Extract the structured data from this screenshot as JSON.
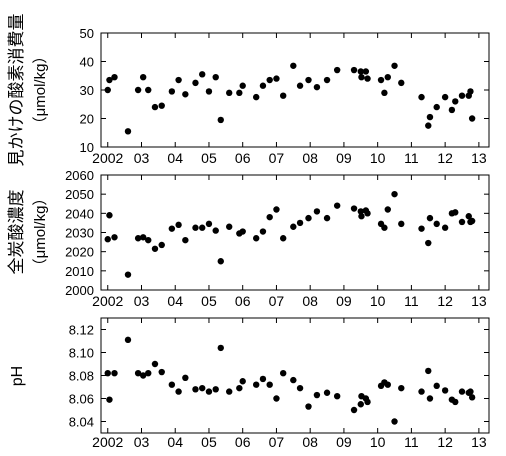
{
  "chart_data": [
    {
      "type": "scatter",
      "ylabel": "見かけの酸素消費量",
      "yunit": "（μmol/kg）",
      "ylim": [
        10,
        50
      ],
      "yticks": [
        "10",
        "20",
        "30",
        "40",
        "50"
      ],
      "xlim": [
        2001.8,
        2013.3
      ],
      "xticks": [
        "2002",
        "03",
        "04",
        "05",
        "06",
        "07",
        "08",
        "09",
        "10",
        "11",
        "12",
        "13"
      ],
      "grid": false,
      "x": [
        2002.0,
        2002.05,
        2002.2,
        2002.6,
        2002.9,
        2003.05,
        2003.2,
        2003.4,
        2003.6,
        2003.9,
        2004.1,
        2004.3,
        2004.6,
        2004.8,
        2005.0,
        2005.2,
        2005.35,
        2005.6,
        2005.9,
        2006.0,
        2006.4,
        2006.6,
        2006.8,
        2007.0,
        2007.2,
        2007.5,
        2007.7,
        2007.95,
        2008.2,
        2008.5,
        2008.8,
        2009.3,
        2009.5,
        2009.52,
        2009.65,
        2009.7,
        2010.1,
        2010.2,
        2010.3,
        2010.5,
        2010.7,
        2011.3,
        2011.5,
        2011.55,
        2011.75,
        2012.0,
        2012.2,
        2012.3,
        2012.5,
        2012.7,
        2012.75,
        2012.8
      ],
      "y": [
        30,
        33.5,
        34.5,
        15.5,
        30,
        34.5,
        30,
        24,
        24.5,
        29.5,
        33.5,
        28.5,
        32.5,
        35.5,
        29.5,
        34.5,
        19.5,
        29,
        29,
        31.5,
        27.5,
        31.5,
        33.5,
        34,
        28,
        38.5,
        31.5,
        33.5,
        31,
        33.5,
        37,
        37,
        36.5,
        34.5,
        36.5,
        34,
        33.5,
        29,
        34.5,
        38.5,
        32.5,
        27.5,
        17.5,
        20.5,
        24,
        27.5,
        23,
        26,
        28,
        28,
        29.5,
        20
      ]
    },
    {
      "type": "scatter",
      "ylabel": "全炭酸濃度",
      "yunit": "（μmol/kg）",
      "ylim": [
        2000,
        2060
      ],
      "yticks": [
        "2000",
        "2010",
        "2020",
        "2030",
        "2040",
        "2050",
        "2060"
      ],
      "xlim": [
        2001.8,
        2013.3
      ],
      "xticks": [
        "2002",
        "03",
        "04",
        "05",
        "06",
        "07",
        "08",
        "09",
        "10",
        "11",
        "12",
        "13"
      ],
      "grid": false,
      "x": [
        2002.0,
        2002.05,
        2002.2,
        2002.6,
        2002.9,
        2003.05,
        2003.2,
        2003.4,
        2003.6,
        2003.9,
        2004.1,
        2004.3,
        2004.6,
        2004.8,
        2005.0,
        2005.2,
        2005.35,
        2005.6,
        2005.9,
        2006.0,
        2006.4,
        2006.6,
        2006.8,
        2007.0,
        2007.2,
        2007.5,
        2007.7,
        2007.95,
        2008.2,
        2008.5,
        2008.8,
        2009.3,
        2009.5,
        2009.52,
        2009.65,
        2009.7,
        2010.1,
        2010.2,
        2010.3,
        2010.5,
        2010.7,
        2011.3,
        2011.5,
        2011.55,
        2011.75,
        2012.0,
        2012.2,
        2012.3,
        2012.5,
        2012.7,
        2012.75,
        2012.8
      ],
      "y": [
        2026.5,
        2039,
        2027.5,
        2008,
        2027,
        2027.5,
        2026,
        2021.5,
        2023.5,
        2032,
        2034,
        2026,
        2032.5,
        2032.5,
        2034.5,
        2031,
        2015,
        2033,
        2029.5,
        2030.5,
        2027,
        2030.5,
        2038,
        2042,
        2027,
        2033,
        2035,
        2037.5,
        2041,
        2037.5,
        2044,
        2042.5,
        2041,
        2038.5,
        2041.5,
        2040,
        2034.5,
        2032.5,
        2042,
        2050,
        2034.5,
        2032,
        2024.5,
        2037.5,
        2034.5,
        2032.5,
        2040,
        2040.5,
        2035.5,
        2038.5,
        2035.5,
        2036
      ]
    },
    {
      "type": "scatter",
      "ylabel": "pH",
      "ylim": [
        8.03,
        8.13
      ],
      "yticks": [
        "8.04",
        "8.06",
        "8.08",
        "8.10",
        "8.12"
      ],
      "xlim": [
        2001.8,
        2013.3
      ],
      "xticks": [
        "2002",
        "03",
        "04",
        "05",
        "06",
        "07",
        "08",
        "09",
        "10",
        "11",
        "12",
        "13"
      ],
      "grid": false,
      "x": [
        2002.0,
        2002.05,
        2002.2,
        2002.6,
        2002.9,
        2003.05,
        2003.2,
        2003.4,
        2003.6,
        2003.9,
        2004.1,
        2004.3,
        2004.6,
        2004.8,
        2005.0,
        2005.2,
        2005.35,
        2005.6,
        2005.9,
        2006.0,
        2006.4,
        2006.6,
        2006.8,
        2007.0,
        2007.2,
        2007.5,
        2007.7,
        2007.95,
        2008.2,
        2008.5,
        2008.8,
        2009.3,
        2009.5,
        2009.52,
        2009.65,
        2009.7,
        2010.1,
        2010.2,
        2010.3,
        2010.5,
        2010.7,
        2011.3,
        2011.5,
        2011.55,
        2011.75,
        2012.0,
        2012.2,
        2012.3,
        2012.5,
        2012.7,
        2012.75,
        2012.8
      ],
      "y": [
        8.082,
        8.059,
        8.082,
        8.111,
        8.082,
        8.08,
        8.082,
        8.09,
        8.083,
        8.072,
        8.066,
        8.078,
        8.068,
        8.069,
        8.066,
        8.068,
        8.104,
        8.066,
        8.069,
        8.075,
        8.072,
        8.077,
        8.072,
        8.06,
        8.082,
        8.076,
        8.069,
        8.053,
        8.063,
        8.065,
        8.062,
        8.05,
        8.055,
        8.062,
        8.06,
        8.057,
        8.071,
        8.074,
        8.072,
        8.04,
        8.069,
        8.066,
        8.084,
        8.06,
        8.071,
        8.067,
        8.059,
        8.057,
        8.066,
        8.065,
        8.066,
        8.061
      ]
    }
  ]
}
